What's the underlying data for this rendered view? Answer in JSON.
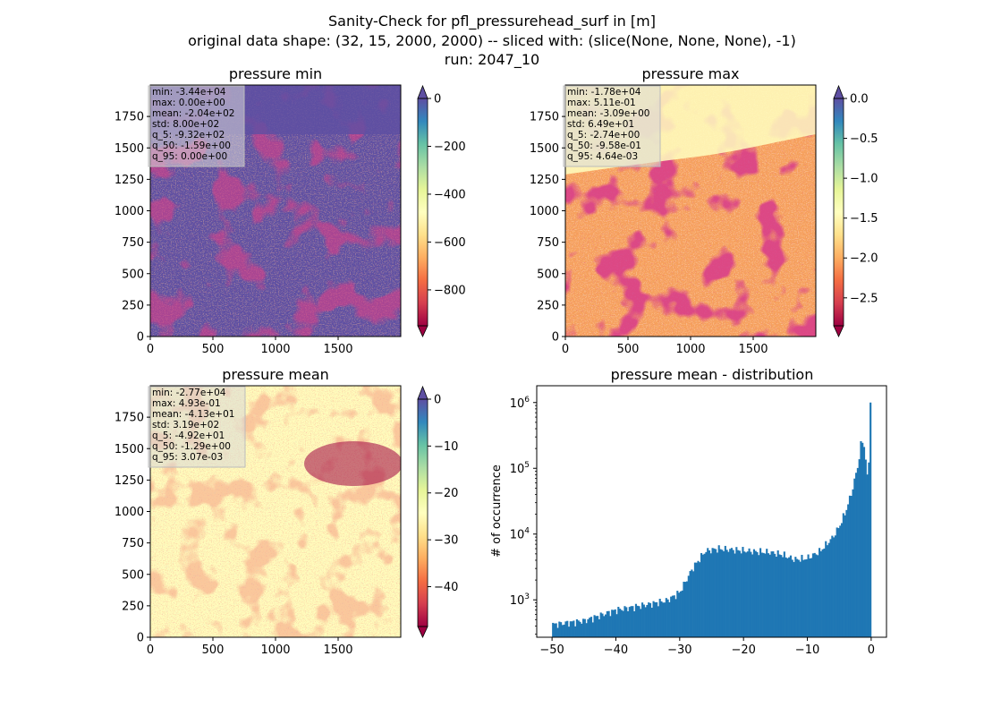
{
  "figure": {
    "title_lines": [
      "Sanity-Check for pfl_pressurehead_surf in [m]",
      "original data shape: (32, 15, 2000, 2000) -- sliced with: (slice(None, None, None), -1)",
      "run: 2047_10"
    ]
  },
  "chart_data": [
    {
      "type": "heatmap",
      "title": "pressure min",
      "xlim": [
        0,
        2000
      ],
      "ylim": [
        0,
        2000
      ],
      "xticks": [
        0,
        500,
        1000,
        1500
      ],
      "yticks": [
        0,
        250,
        500,
        750,
        1000,
        1250,
        1500,
        1750
      ],
      "colorbar": {
        "range": [
          -950,
          0
        ],
        "ticks": [
          0,
          -200,
          -400,
          -600,
          -800
        ],
        "tick_labels": [
          "0",
          "−200",
          "−400",
          "−600",
          "−800"
        ],
        "cmap": "Spectral",
        "extend": "both"
      },
      "dominant_value": 0,
      "stats": [
        "min: -3.44e+04",
        "max: 0.00e+00",
        "mean: -2.04e+02",
        "std: 8.00e+02",
        "q_5: -9.32e+02",
        "q_50: -1.59e+00",
        "q_95: 0.00e+00"
      ]
    },
    {
      "type": "heatmap",
      "title": "pressure max",
      "xlim": [
        0,
        2000
      ],
      "ylim": [
        0,
        2000
      ],
      "xticks": [
        0,
        500,
        1000,
        1500
      ],
      "yticks": [
        0,
        250,
        500,
        750,
        1000,
        1250,
        1500,
        1750
      ],
      "colorbar": {
        "range": [
          -2.85,
          0
        ],
        "ticks": [
          0,
          -0.5,
          -1.0,
          -1.5,
          -2.0,
          -2.5
        ],
        "tick_labels": [
          "0.0",
          "−0.5",
          "−1.0",
          "−1.5",
          "−2.0",
          "−2.5"
        ],
        "cmap": "Spectral",
        "extend": "both"
      },
      "stats": [
        "min: -1.78e+04",
        "max: 5.11e-01",
        "mean: -3.09e+00",
        "std: 6.49e+01",
        "q_5: -2.74e+00",
        "q_50: -9.58e-01",
        "q_95: 4.64e-03"
      ]
    },
    {
      "type": "heatmap",
      "title": "pressure mean",
      "xlim": [
        0,
        2000
      ],
      "ylim": [
        0,
        2000
      ],
      "xticks": [
        0,
        500,
        1000,
        1500
      ],
      "yticks": [
        0,
        250,
        500,
        750,
        1000,
        1250,
        1500,
        1750
      ],
      "colorbar": {
        "range": [
          -48.5,
          0
        ],
        "ticks": [
          0,
          -10,
          -20,
          -30,
          -40
        ],
        "tick_labels": [
          "0",
          "−10",
          "−20",
          "−30",
          "−40"
        ],
        "cmap": "Spectral",
        "extend": "both"
      },
      "stats": [
        "min: -2.77e+04",
        "max: 4.93e-01",
        "mean: -4.13e+01",
        "std: 3.19e+02",
        "q_5: -4.92e+01",
        "q_50: -1.29e+00",
        "q_95: 3.07e-03"
      ]
    },
    {
      "type": "bar",
      "title": "pressure mean - distribution",
      "ylabel": "# of occurrence",
      "xlim": [
        -52.4,
        2.4
      ],
      "ylim": [
        270,
        1800000
      ],
      "yscale": "log",
      "xticks": [
        -50,
        -40,
        -30,
        -20,
        -10,
        0
      ],
      "xtick_labels": [
        "−50",
        "−40",
        "−30",
        "−20",
        "−10",
        "0"
      ],
      "yticks": [
        1000,
        10000,
        100000,
        1000000
      ],
      "ytick_labels": [
        [
          "10",
          "3"
        ],
        [
          "10",
          "4"
        ],
        [
          "10",
          "5"
        ],
        [
          "10",
          "6"
        ]
      ],
      "bin_range": [
        -50,
        0
      ],
      "bins": 200,
      "anchor_x": [
        -50,
        -45,
        -40,
        -35,
        -32,
        -30,
        -28,
        -26,
        -24,
        -22,
        -20,
        -18,
        -16,
        -14,
        -12,
        -10,
        -8,
        -6,
        -5,
        -4,
        -3,
        -2,
        -1.5,
        -1,
        -0.5,
        -0.12
      ],
      "anchor_y": [
        420,
        480,
        700,
        850,
        980,
        1300,
        3000,
        5500,
        6000,
        5800,
        5600,
        5400,
        5300,
        4900,
        4100,
        4300,
        5500,
        9000,
        13000,
        22000,
        45000,
        120000,
        280000,
        200000,
        50000,
        1000000
      ],
      "color": "#1f77b4"
    }
  ]
}
